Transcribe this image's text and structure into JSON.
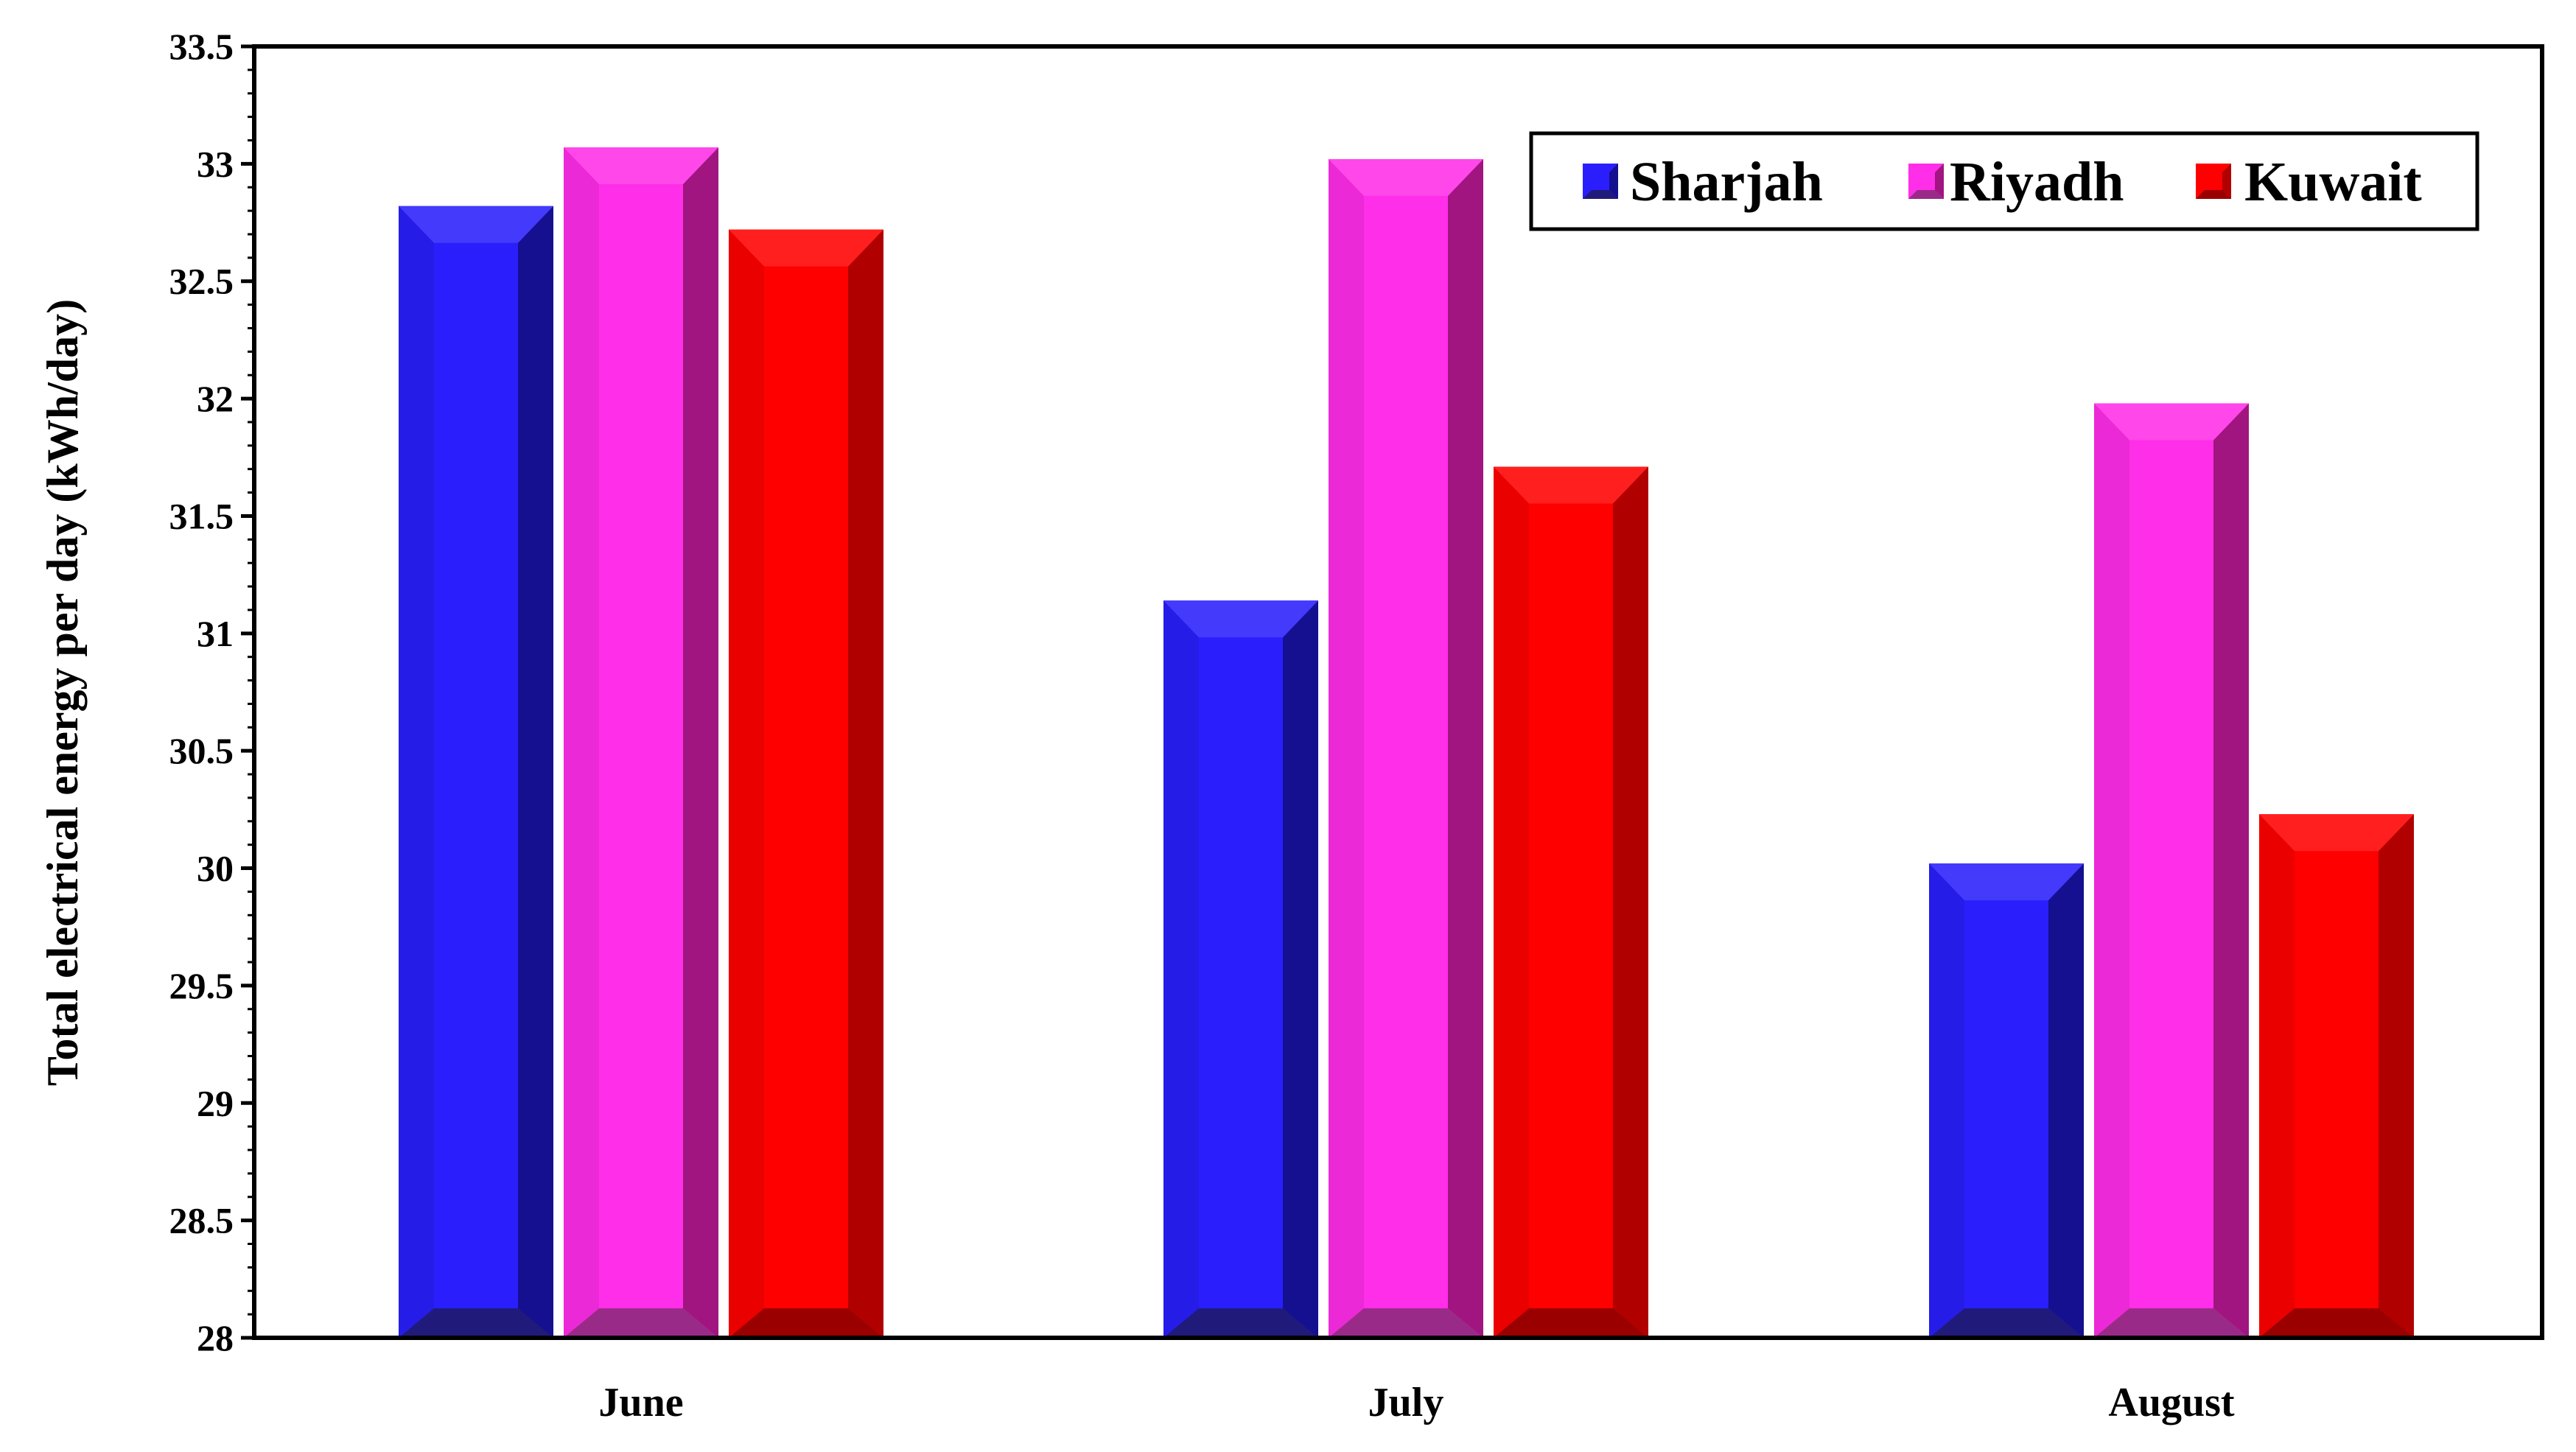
{
  "chart_data": {
    "type": "bar",
    "categories": [
      "June",
      "July",
      "August"
    ],
    "series": [
      {
        "name": "Sharjah",
        "values": [
          32.82,
          31.14,
          30.02
        ],
        "color": "#2a1ffc",
        "side": "#141090",
        "dark": "#201a7a"
      },
      {
        "name": "Riyadh",
        "values": [
          33.07,
          33.02,
          31.98
        ],
        "color": "#ff2ee8",
        "side": "#a0157f",
        "dark": "#9a2a88"
      },
      {
        "name": "Kuwait",
        "values": [
          32.72,
          31.71,
          30.23
        ],
        "color": "#ff0000",
        "side": "#b00000",
        "dark": "#9a0000"
      }
    ],
    "ylabel": "Total electrical energy per day (kWh/day)",
    "xlabel": "",
    "ylim": [
      28,
      33.5
    ],
    "yticks": [
      "28",
      "28.5",
      "29",
      "29.5",
      "30",
      "30.5",
      "31",
      "31.5",
      "32",
      "32.5",
      "33",
      "33.5"
    ],
    "legend_position": "top-right",
    "grid": false
  }
}
